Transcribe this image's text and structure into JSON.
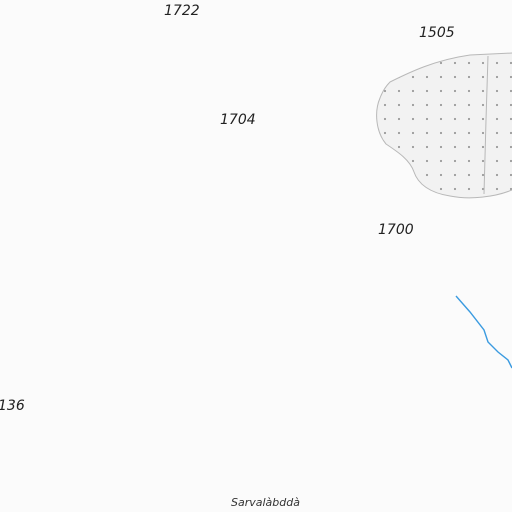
{
  "map": {
    "colors": {
      "background": "#fbfbfb",
      "glacier_fill": "#f2f2f2",
      "glacier_outline": "#b8b8b8",
      "glacier_dots": "#9a9a9a",
      "stream": "#3b9be0",
      "label_text": "#222222"
    },
    "spot_heights": [
      "1722",
      "1505",
      "1704",
      "1700",
      "136"
    ],
    "place_names": [
      "Sarvalàbddà"
    ],
    "features": [
      "glacier",
      "stream"
    ]
  }
}
